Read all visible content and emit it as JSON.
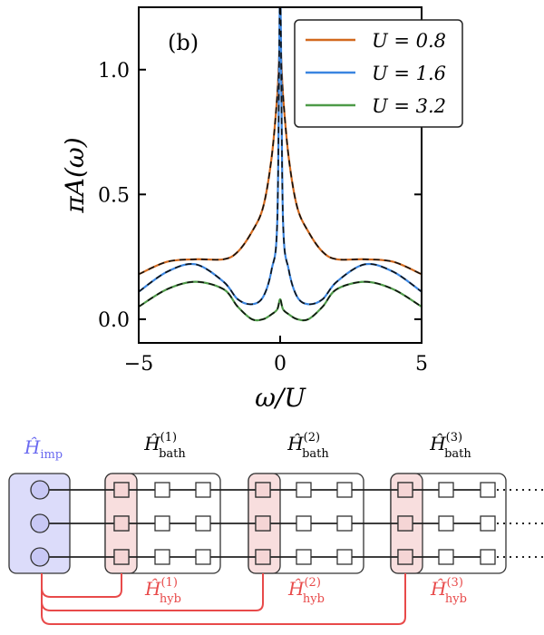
{
  "chart_data": {
    "type": "line",
    "panel_label": "(b)",
    "xlabel": "ω/U",
    "ylabel": "πA(ω)",
    "xlim": [
      -5,
      5
    ],
    "ylim": [
      -0.095,
      1.25
    ],
    "xticks": [
      -5,
      0,
      5
    ],
    "xtick_labels": [
      "−5",
      "0",
      "5"
    ],
    "yticks": [
      0.0,
      0.5,
      1.0
    ],
    "ytick_labels": [
      "0.0",
      "0.5",
      "1.0"
    ],
    "legend_position": "top-right",
    "x": [
      -5,
      -4,
      -3,
      -2,
      -1.5,
      -1,
      -0.6,
      -0.3,
      -0.1,
      0,
      0.1,
      0.3,
      0.6,
      1,
      1.5,
      2,
      3,
      4,
      5
    ],
    "series": [
      {
        "name": "U = 0.8",
        "color": "#d2691e",
        "values": [
          0.18,
          0.23,
          0.24,
          0.24,
          0.27,
          0.35,
          0.45,
          0.65,
          0.9,
          1.1,
          0.9,
          0.65,
          0.45,
          0.35,
          0.27,
          0.24,
          0.24,
          0.23,
          0.18
        ]
      },
      {
        "name": "U = 1.6",
        "color": "#3a85e0",
        "values": [
          0.11,
          0.19,
          0.22,
          0.15,
          0.08,
          0.06,
          0.09,
          0.2,
          0.4,
          1.3,
          0.4,
          0.2,
          0.09,
          0.06,
          0.08,
          0.15,
          0.22,
          0.19,
          0.11
        ]
      },
      {
        "name": "U = 3.2",
        "color": "#4e9a48",
        "values": [
          0.05,
          0.12,
          0.15,
          0.12,
          0.05,
          0.0,
          0.0,
          0.02,
          0.04,
          0.08,
          0.04,
          0.02,
          0.0,
          0.0,
          0.05,
          0.12,
          0.15,
          0.12,
          0.05
        ]
      }
    ],
    "reference_style": "black dashed"
  },
  "diagram": {
    "impurity_label": {
      "base": "Ĥ",
      "sub": "imp"
    },
    "bath_labels": [
      {
        "base": "Ĥ",
        "sup": "(1)",
        "sub": "bath"
      },
      {
        "base": "Ĥ",
        "sup": "(2)",
        "sub": "bath"
      },
      {
        "base": "Ĥ",
        "sup": "(3)",
        "sub": "bath"
      }
    ],
    "hyb_labels": [
      {
        "base": "Ĥ",
        "sup": "(1)",
        "sub": "hyb"
      },
      {
        "base": "Ĥ",
        "sup": "(2)",
        "sub": "hyb"
      },
      {
        "base": "Ĥ",
        "sup": "(3)",
        "sub": "hyb"
      }
    ],
    "colors": {
      "impurity": "#6a6af0",
      "hyb": "#e84a4a",
      "bath": "#000000"
    }
  }
}
